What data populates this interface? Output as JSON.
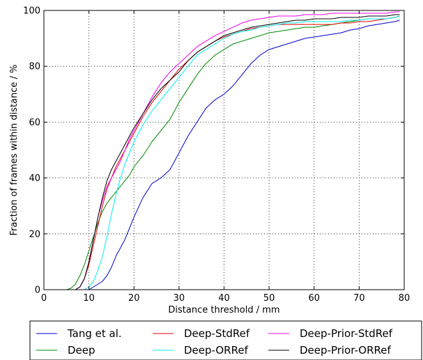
{
  "chart_data": {
    "type": "line",
    "title": "",
    "xlabel": "Distance threshold / mm",
    "ylabel": "Fraction of frames within distance / %",
    "xlim": [
      0,
      80
    ],
    "ylim": [
      0,
      100
    ],
    "xticks": [
      "0",
      "10",
      "20",
      "30",
      "40",
      "50",
      "60",
      "70",
      "80"
    ],
    "yticks": [
      "0",
      "20",
      "40",
      "60",
      "80",
      "100"
    ],
    "grid": true,
    "legend_position": "bottom",
    "series": [
      {
        "name": "Tang et al.",
        "color": "#0000cc",
        "x": [
          0,
          10,
          11,
          12,
          13,
          14,
          15,
          16,
          17,
          18,
          19,
          20,
          22,
          24,
          26,
          28,
          30,
          32,
          34,
          36,
          38,
          40,
          42,
          44,
          46,
          48,
          50,
          52,
          54,
          56,
          58,
          60,
          62,
          64,
          66,
          68,
          70,
          72,
          74,
          76,
          78,
          79
        ],
        "values": [
          0,
          0,
          1,
          2,
          3,
          5,
          8,
          12,
          15,
          18,
          22,
          26,
          33,
          38,
          40,
          43,
          49,
          55,
          60,
          65,
          68,
          70,
          73,
          77,
          81,
          84,
          86,
          87,
          88,
          89,
          90,
          90.5,
          91,
          91.5,
          92,
          93,
          93.5,
          94.5,
          95,
          95.5,
          96,
          96.5
        ]
      },
      {
        "name": "Deep",
        "color": "#008800",
        "x": [
          0,
          5,
          6,
          7,
          8,
          9,
          10,
          11,
          12,
          13,
          14,
          15,
          16,
          17,
          18,
          19,
          20,
          21,
          22,
          24,
          26,
          28,
          30,
          32,
          34,
          36,
          38,
          40,
          42,
          44,
          46,
          48,
          50,
          52,
          54,
          56,
          58,
          60,
          62,
          64,
          66,
          68,
          70,
          72,
          74,
          76,
          78,
          79
        ],
        "values": [
          0,
          0,
          0.5,
          2,
          5,
          9,
          14,
          19,
          24,
          28,
          31,
          33,
          35,
          37,
          39,
          41,
          44,
          46,
          48,
          53,
          57,
          61,
          67,
          72,
          77,
          81,
          84,
          86,
          88,
          89,
          90,
          91,
          92,
          92.5,
          93,
          93.5,
          94,
          94,
          94.5,
          95,
          95.5,
          96,
          96.5,
          97,
          97,
          97,
          97.5,
          98
        ]
      },
      {
        "name": "Deep-StdRef",
        "color": "#dd0000",
        "x": [
          0,
          7,
          8,
          9,
          10,
          11,
          12,
          13,
          14,
          15,
          16,
          17,
          18,
          19,
          20,
          22,
          24,
          26,
          28,
          30,
          32,
          34,
          36,
          38,
          40,
          42,
          44,
          46,
          48,
          50,
          52,
          54,
          56,
          58,
          60,
          62,
          64,
          66,
          68,
          70,
          72,
          74,
          76,
          78,
          79
        ],
        "values": [
          0,
          0,
          1,
          4,
          9,
          16,
          23,
          30,
          36,
          40,
          44,
          47,
          50,
          53,
          56,
          62,
          67,
          71,
          75,
          79,
          82,
          85,
          87,
          89,
          90.5,
          91.5,
          92.5,
          93.5,
          94,
          94.5,
          95,
          95,
          95,
          95,
          95,
          95,
          95,
          95.5,
          95.5,
          96,
          96,
          96.5,
          97,
          97.5,
          98
        ]
      },
      {
        "name": "Deep-ORRef",
        "color": "#00eeee",
        "x": [
          0,
          9,
          10,
          11,
          12,
          13,
          14,
          15,
          16,
          17,
          18,
          19,
          20,
          22,
          24,
          26,
          28,
          30,
          32,
          34,
          36,
          38,
          40,
          42,
          44,
          46,
          48,
          50,
          52,
          54,
          56,
          58,
          60,
          62,
          64,
          66,
          68,
          70,
          72,
          74,
          76,
          78,
          79
        ],
        "values": [
          0,
          0,
          1,
          3,
          7,
          12,
          19,
          27,
          34,
          40,
          45,
          49,
          53,
          59,
          64,
          68,
          72,
          76,
          80,
          84,
          86,
          88,
          90,
          91.5,
          92.5,
          93,
          94,
          94.5,
          95,
          95.5,
          95.5,
          96,
          96,
          96,
          96,
          96,
          96.5,
          96.5,
          97,
          97,
          97,
          97.5,
          98
        ]
      },
      {
        "name": "Deep-Prior-StdRef",
        "color": "#ee00ee",
        "x": [
          0,
          7,
          8,
          9,
          10,
          11,
          12,
          13,
          14,
          15,
          16,
          17,
          18,
          19,
          20,
          22,
          24,
          26,
          28,
          30,
          32,
          34,
          36,
          38,
          40,
          42,
          44,
          46,
          48,
          50,
          52,
          54,
          56,
          58,
          60,
          62,
          64,
          66,
          68,
          70,
          72,
          74,
          76,
          78,
          79
        ],
        "values": [
          0,
          0,
          1,
          4,
          10,
          18,
          26,
          32,
          37,
          40,
          43,
          46,
          50,
          54,
          57,
          63,
          69,
          74,
          78,
          81,
          84,
          87,
          89,
          91,
          92.5,
          94,
          95.5,
          96.5,
          97,
          97.5,
          98,
          98,
          98,
          98.5,
          98.5,
          98.5,
          99,
          99,
          99,
          99,
          99,
          99,
          99,
          99.5,
          99.5
        ]
      },
      {
        "name": "Deep-Prior-ORRef",
        "color": "#000000",
        "x": [
          0,
          7,
          8,
          9,
          10,
          11,
          12,
          13,
          14,
          15,
          16,
          17,
          18,
          19,
          20,
          22,
          24,
          26,
          28,
          30,
          32,
          34,
          36,
          38,
          40,
          42,
          44,
          46,
          48,
          50,
          52,
          54,
          56,
          58,
          60,
          62,
          64,
          66,
          68,
          70,
          72,
          74,
          76,
          78,
          79
        ],
        "values": [
          0,
          0,
          1,
          4,
          10,
          18,
          26,
          33,
          39,
          43,
          46,
          49,
          52,
          55,
          58,
          63,
          68,
          72,
          75,
          78,
          82,
          85,
          87,
          89,
          91,
          92,
          93,
          94,
          94.5,
          95,
          95.5,
          96,
          96.5,
          96.5,
          97,
          97,
          97,
          97.5,
          97.5,
          97.5,
          98,
          98,
          98,
          98.5,
          98.5
        ]
      }
    ]
  }
}
